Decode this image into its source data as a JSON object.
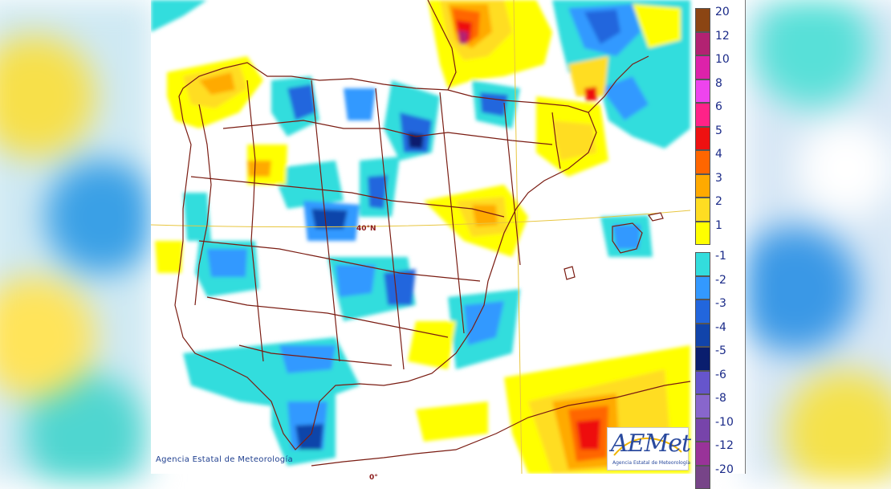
{
  "map": {
    "credit": "Agencia Estatal de Meteorología",
    "latitude_label": "40°N",
    "longitude_label": "0°"
  },
  "logo": {
    "name": "AEMet",
    "subtitle": "Agencia Estatal de Meteorología"
  },
  "legend": {
    "positive": [
      {
        "label": "20",
        "color": "#8b4513"
      },
      {
        "label": "12",
        "color": "#b22272"
      },
      {
        "label": "10",
        "color": "#dd22aa"
      },
      {
        "label": "8",
        "color": "#ee44ee"
      },
      {
        "label": "6",
        "color": "#ff2288"
      },
      {
        "label": "5",
        "color": "#ee1111"
      },
      {
        "label": "4",
        "color": "#ff6600"
      },
      {
        "label": "3",
        "color": "#ffaa00"
      },
      {
        "label": "2",
        "color": "#ffdd22"
      },
      {
        "label": "1",
        "color": "#ffff00"
      }
    ],
    "negative": [
      {
        "label": "-1",
        "color": "#33dddd"
      },
      {
        "label": "-2",
        "color": "#3399ff"
      },
      {
        "label": "-3",
        "color": "#2266dd"
      },
      {
        "label": "-4",
        "color": "#1144aa"
      },
      {
        "label": "-5",
        "color": "#0a1e6e"
      },
      {
        "label": "-6",
        "color": "#6655cc"
      },
      {
        "label": "-8",
        "color": "#8866cc"
      },
      {
        "label": "-10",
        "color": "#7744aa"
      },
      {
        "label": "-12",
        "color": "#993399"
      },
      {
        "label": "-20",
        "color": "#774488"
      }
    ]
  }
}
